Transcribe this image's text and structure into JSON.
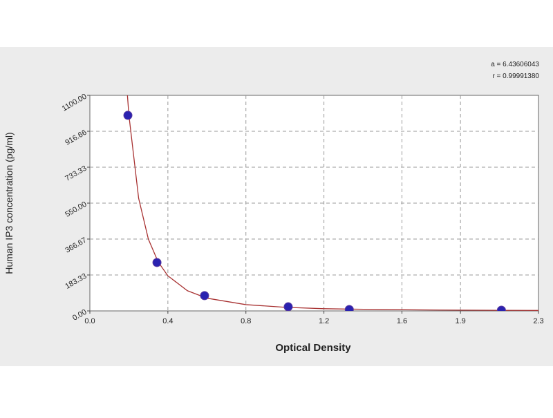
{
  "chart_data": {
    "type": "scatter",
    "xlabel": "Optical Density",
    "ylabel": "Human IP3 concentration (pg/ml)",
    "annotations": [
      "a = 6.43606043",
      "r = 0.99991380"
    ],
    "xlim": [
      0,
      2.3
    ],
    "ylim": [
      0,
      1100
    ],
    "xticks": [
      {
        "value": 0,
        "label": "0.0"
      },
      0.4,
      0.8,
      1.2,
      1.6,
      1.9,
      2.3
    ],
    "yticks": [
      {
        "value": 0,
        "label": "0.00"
      },
      183.33,
      366.67,
      {
        "value": 550,
        "label": "550.00"
      },
      733.33,
      916.66,
      {
        "value": 1100,
        "label": "1100.00"
      }
    ],
    "grid": true,
    "series": [
      {
        "mode": "line",
        "color": "#a83232",
        "x": [
          0.19,
          0.2,
          0.25,
          0.3,
          0.35,
          0.4,
          0.5,
          0.6,
          0.8,
          1.0,
          1.2,
          1.5,
          1.8,
          2.1,
          2.3
        ],
        "values": [
          1136,
          1000,
          575,
          366,
          250,
          179,
          103,
          65,
          32,
          18.5,
          11.2,
          6.8,
          4.3,
          3.0,
          2.4
        ]
      },
      {
        "mode": "markers",
        "color": "#2a22b0",
        "x": [
          0.195,
          0.344,
          0.588,
          1.017,
          1.33,
          2.11
        ],
        "values": [
          998,
          247,
          78,
          21,
          7,
          3.5
        ]
      }
    ]
  }
}
